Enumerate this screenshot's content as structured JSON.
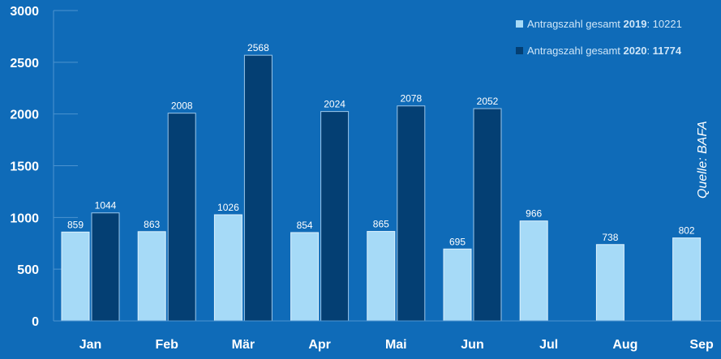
{
  "colors": {
    "background": "#0f6bb8",
    "series_2019": "#a6daf7",
    "series_2020": "#043f73",
    "gridline": "#4c93cf",
    "text": "#ffffff",
    "legend_text": "#cfe6f8"
  },
  "legend": {
    "items": [
      {
        "prefix": "Antragszahl gesamt ",
        "year": "2019",
        "sep": ": ",
        "total": "10221",
        "total_bold": false
      },
      {
        "prefix": "Antragszahl gesamt ",
        "year": "2020",
        "sep": ": ",
        "total": "11774",
        "total_bold": true
      }
    ]
  },
  "source": "Quelle: BAFA",
  "chart_data": {
    "type": "bar",
    "categories": [
      "Jan",
      "Feb",
      "Mär",
      "Apr",
      "Mai",
      "Jun",
      "Jul",
      "Aug",
      "Sep"
    ],
    "series": [
      {
        "name": "2019",
        "values": [
          859,
          863,
          1026,
          854,
          865,
          695,
          966,
          738,
          802
        ]
      },
      {
        "name": "2020",
        "values": [
          1044,
          2008,
          2568,
          2024,
          2078,
          2052,
          null,
          null,
          null
        ]
      }
    ],
    "ylim": [
      0,
      3000
    ],
    "yticks": [
      0,
      500,
      1000,
      1500,
      2000,
      2500,
      3000
    ],
    "grid": true,
    "legend_position": "top-right"
  }
}
